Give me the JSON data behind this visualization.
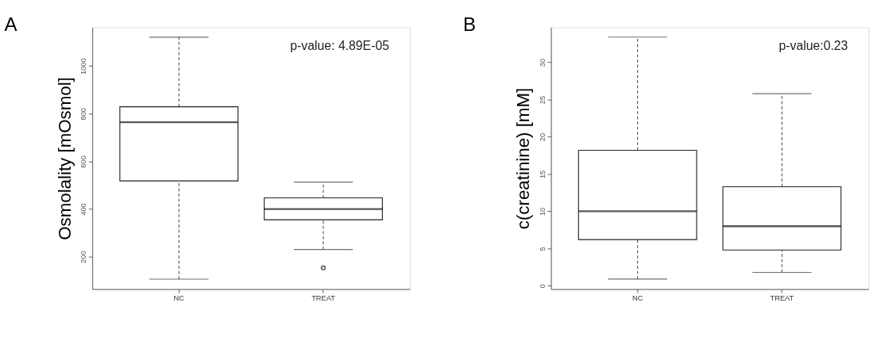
{
  "chart_data": [
    {
      "type": "box",
      "title": "A",
      "ylabel": "Osmolality  [mOsmol]",
      "categories": [
        "NC",
        "TREAT"
      ],
      "boxes": [
        {
          "low": 106,
          "q1": 518,
          "median": 764,
          "q3": 829,
          "high": 1121
        },
        {
          "low": 230,
          "q1": 355,
          "median": 400,
          "q3": 447,
          "high": 513,
          "outliers": [
            153
          ]
        }
      ],
      "ylim": [
        64,
        1162
      ],
      "yticks": [
        200,
        400,
        600,
        800,
        1000
      ],
      "grid": false,
      "annotations": [
        "p-value: 4.89E-05"
      ]
    },
    {
      "type": "box",
      "title": "B",
      "ylabel": "c(creatinine)  [mM]",
      "categories": [
        "NC",
        "TREAT"
      ],
      "boxes": [
        {
          "low": 0.9,
          "q1": 6.2,
          "median": 10.0,
          "q3": 18.2,
          "high": 33.4
        },
        {
          "low": 1.8,
          "q1": 4.8,
          "median": 8.0,
          "q3": 13.3,
          "high": 25.8
        }
      ],
      "ylim": [
        -0.45,
        34.7
      ],
      "yticks": [
        0,
        5,
        10,
        15,
        20,
        25,
        30
      ],
      "grid": false,
      "annotations": [
        "p-value:0.23"
      ]
    }
  ]
}
